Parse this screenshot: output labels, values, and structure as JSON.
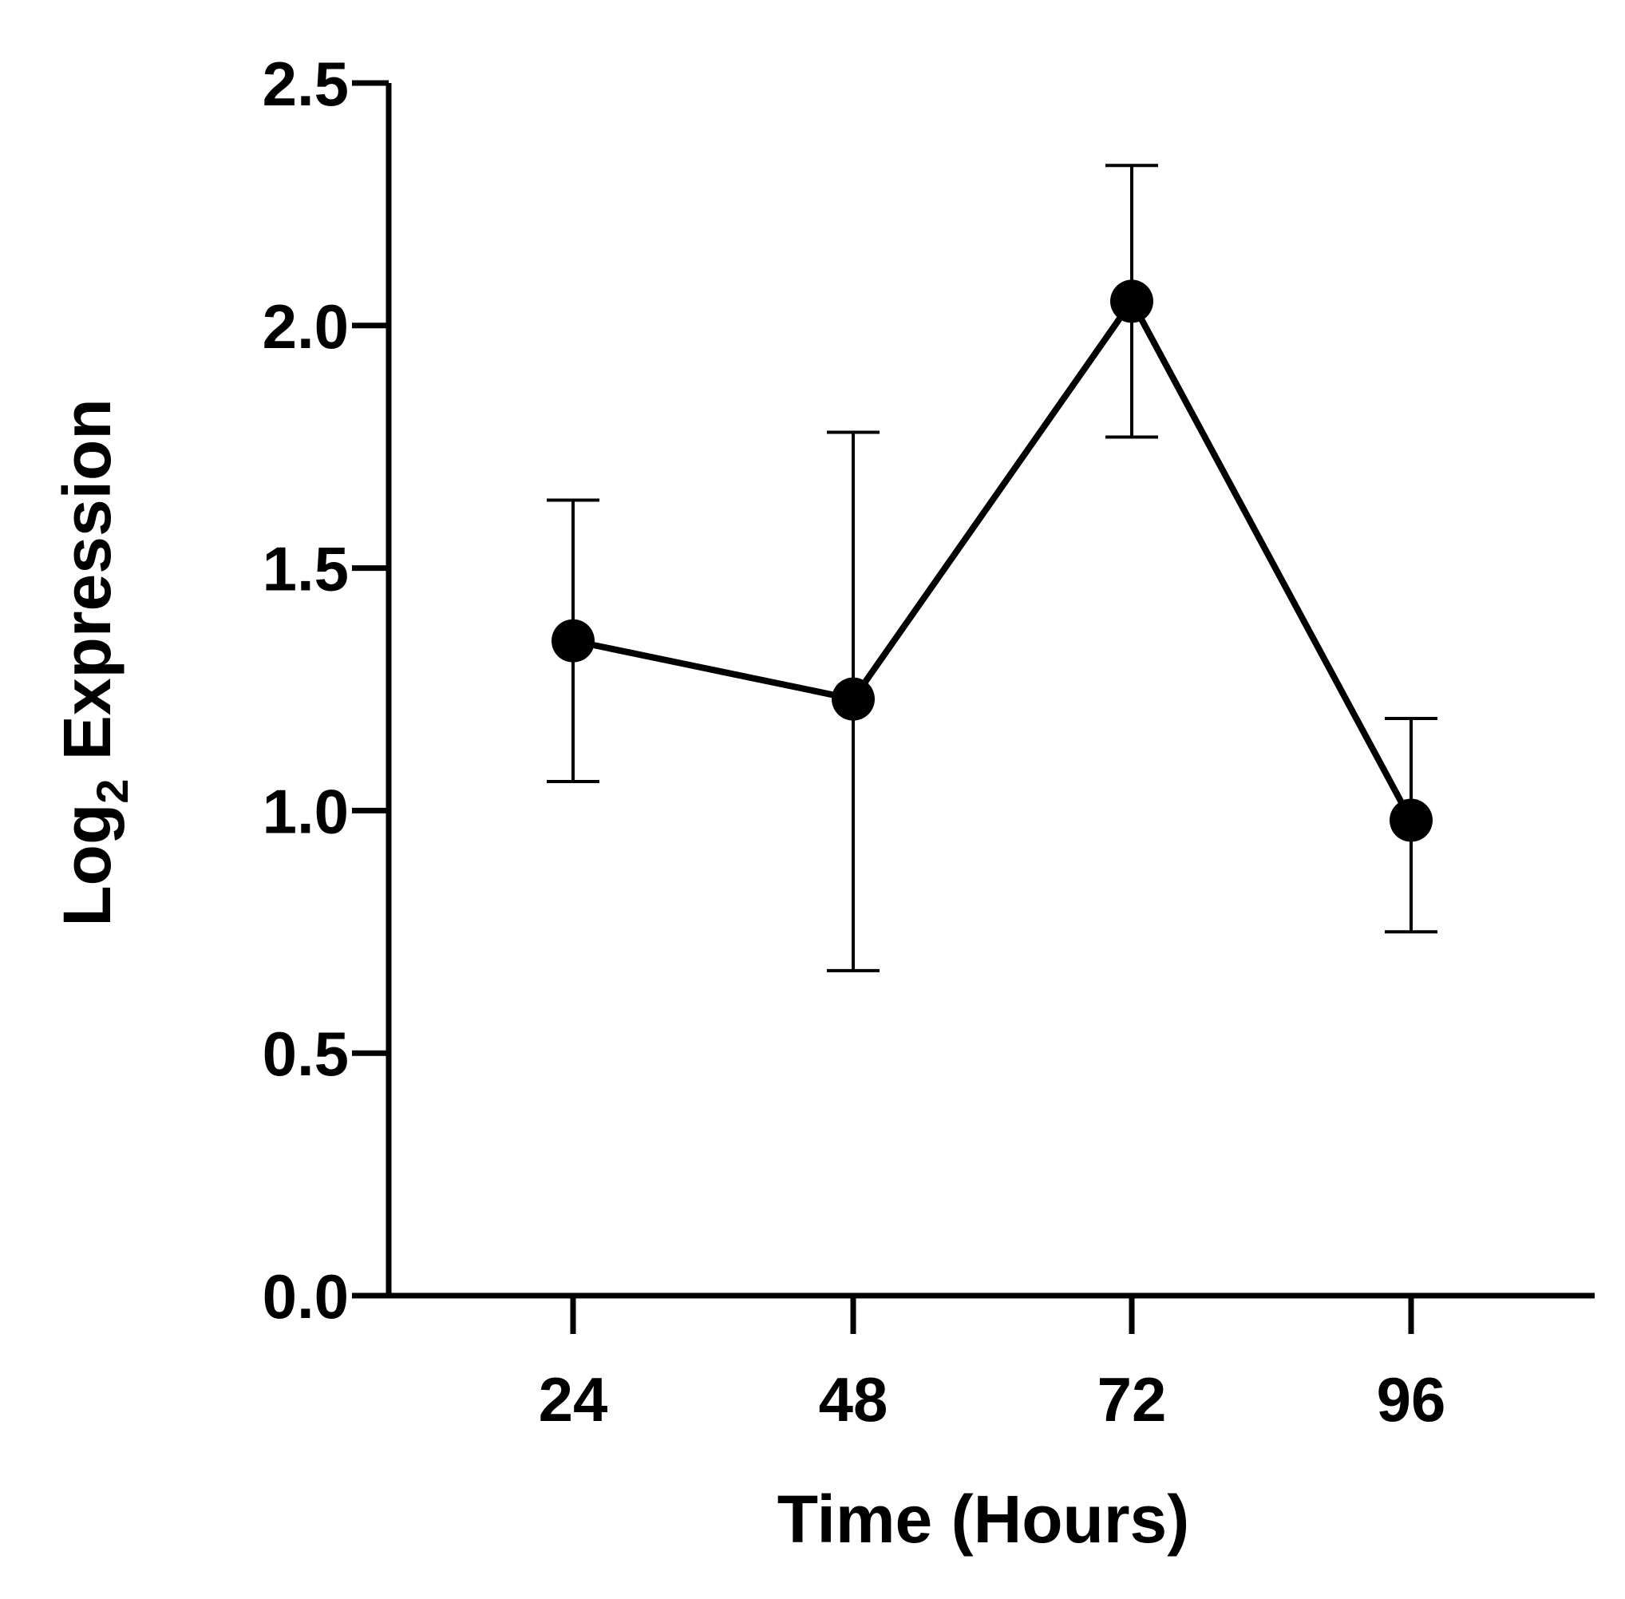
{
  "chart_data": {
    "type": "line",
    "title": "",
    "xlabel": "Time (Hours)",
    "ylabel_main": "Log",
    "ylabel_sub": "2",
    "ylabel_rest": " Expression",
    "categories": [
      "24",
      "48",
      "72",
      "96"
    ],
    "series": [
      {
        "name": "Log2 Expression",
        "values": [
          1.35,
          1.23,
          2.05,
          0.98
        ],
        "error_low": [
          1.06,
          0.67,
          1.77,
          0.75
        ],
        "error_high": [
          1.64,
          1.78,
          2.33,
          1.19
        ]
      }
    ],
    "ylim": [
      0,
      2.5
    ],
    "yticks": [
      "0.0",
      "0.5",
      "1.0",
      "1.5",
      "2.0",
      "2.5"
    ],
    "grid": false,
    "colors": {
      "line": "#000000",
      "marker": "#000000"
    }
  }
}
